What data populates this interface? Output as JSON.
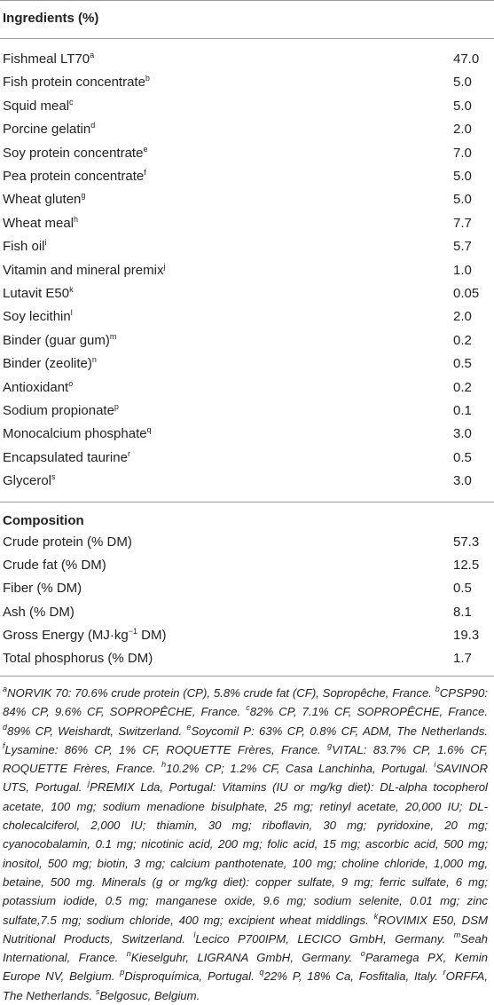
{
  "table": {
    "header": "Ingredients (%)",
    "ingredients": [
      {
        "name": "Fishmeal LT70",
        "sup": "a",
        "value": "47.0"
      },
      {
        "name": "Fish protein concentrate",
        "sup": "b",
        "value": "5.0"
      },
      {
        "name": "Squid meal",
        "sup": "c",
        "value": "5.0"
      },
      {
        "name": "Porcine gelatin",
        "sup": "d",
        "value": "2.0"
      },
      {
        "name": "Soy protein concentrate",
        "sup": "e",
        "value": "7.0"
      },
      {
        "name": "Pea protein concentrate",
        "sup": "f",
        "value": "5.0"
      },
      {
        "name": "Wheat gluten",
        "sup": "g",
        "value": "5.0"
      },
      {
        "name": "Wheat meal",
        "sup": "h",
        "value": "7.7"
      },
      {
        "name": "Fish oil",
        "sup": "i",
        "value": "5.7"
      },
      {
        "name": "Vitamin and mineral premix",
        "sup": "j",
        "value": "1.0"
      },
      {
        "name": "Lutavit E50",
        "sup": "k",
        "value": "0.05"
      },
      {
        "name": "Soy lecithin",
        "sup": "l",
        "value": "2.0"
      },
      {
        "name": "Binder (guar gum)",
        "sup": "m",
        "value": "0.2"
      },
      {
        "name": "Binder (zeolite)",
        "sup": "n",
        "value": "0.5"
      },
      {
        "name": "Antioxidant",
        "sup": "o",
        "value": "0.2"
      },
      {
        "name": "Sodium propionate",
        "sup": "p",
        "value": "0.1"
      },
      {
        "name": "Monocalcium phosphate",
        "sup": "q",
        "value": "3.0"
      },
      {
        "name": "Encapsulated taurine",
        "sup": "r",
        "value": "0.5"
      },
      {
        "name": "Glycerol",
        "sup": "s",
        "value": "3.0"
      }
    ],
    "composition_header": "Composition",
    "composition": [
      {
        "name": "Crude protein (% DM)",
        "value": "57.3"
      },
      {
        "name": "Crude fat (% DM)",
        "value": "12.5"
      },
      {
        "name": "Fiber (% DM)",
        "value": "0.5"
      },
      {
        "name": "Ash (% DM)",
        "value": "8.1"
      },
      {
        "name": "Gross Energy (MJ·kg",
        "sup": "−1",
        "after": " DM)",
        "value": "19.3"
      },
      {
        "name": "Total phosphorus (% DM)",
        "value": "1.7"
      }
    ]
  },
  "footnotes": [
    {
      "mark": "a",
      "text": "NORVIK 70: 70.6% crude protein (CP), 5.8% crude fat (CF), Sopropêche, France."
    },
    {
      "mark": "b",
      "text": "CPSP90: 84% CP, 9.6% CF, SOPROPÊCHE, France."
    },
    {
      "mark": "c",
      "text": "82% CP, 7.1% CF, SOPROPÊCHE, France."
    },
    {
      "mark": "d",
      "text": "89% CP, Weishardt, Switzerland."
    },
    {
      "mark": "e",
      "text": "Soycomil P: 63% CP, 0.8% CF, ADM, The Netherlands."
    },
    {
      "mark": "f",
      "text": "Lysamine: 86% CP, 1% CF, ROQUETTE Frères, France."
    },
    {
      "mark": "g",
      "text": "VITAL: 83.7% CP, 1.6% CF, ROQUETTE Frères, France."
    },
    {
      "mark": "h",
      "text": "10.2% CP; 1.2% CF, Casa Lanchinha, Portugal."
    },
    {
      "mark": "i",
      "text": "SAVINOR UTS, Portugal."
    },
    {
      "mark": "j",
      "text": "PREMIX Lda, Portugal: Vitamins (IU or mg/kg diet): DL-alpha tocopherol acetate, 100 mg; sodium menadione bisulphate, 25 mg; retinyl acetate, 20,000 IU; DL-cholecalciferol, 2,000 IU; thiamin, 30 mg; riboflavin, 30 mg; pyridoxine, 20 mg; cyanocobalamin, 0.1 mg; nicotinic acid, 200 mg; folic acid, 15 mg; ascorbic acid, 500 mg; inositol, 500 mg; biotin, 3 mg; calcium panthotenate, 100 mg; choline chloride, 1,000 mg, betaine, 500 mg. Minerals (g or mg/kg diet): copper sulfate, 9 mg; ferric sulfate, 6 mg; potassium iodide, 0.5 mg; manganese oxide, 9.6 mg; sodium selenite, 0.01 mg; zinc sulfate,7.5 mg; sodium chloride, 400 mg; excipient wheat middlings."
    },
    {
      "mark": "k",
      "text": "ROVIMIX E50, DSM Nutritional Products, Switzerland."
    },
    {
      "mark": "l",
      "text": "Lecico P700IPM, LECICO GmbH, Germany."
    },
    {
      "mark": "m",
      "text": "Seah International, France."
    },
    {
      "mark": "n",
      "text": "Kieselguhr, LIGRANA GmbH, Germany."
    },
    {
      "mark": "o",
      "text": "Paramega PX, Kemin Europe NV, Belgium."
    },
    {
      "mark": "p",
      "text": "Disproquímica, Portugal."
    },
    {
      "mark": "q",
      "text": "22% P, 18% Ca, Fosfitalia, Italy."
    },
    {
      "mark": "r",
      "text": "ORFFA, The Netherlands."
    },
    {
      "mark": "s",
      "text": "Belgosuc, Belgium."
    }
  ]
}
